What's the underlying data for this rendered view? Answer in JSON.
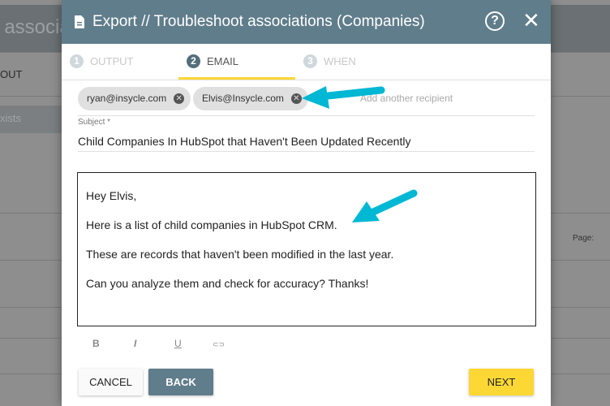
{
  "background": {
    "header_fragment": "t associat",
    "row_fragment": "OUT",
    "filter_fragment": "xists",
    "page_label": "Page:"
  },
  "modal": {
    "title": "Export // Troubleshoot associations (Companies)",
    "steps": [
      {
        "number": "1",
        "label": "OUTPUT",
        "active": false
      },
      {
        "number": "2",
        "label": "EMAIL",
        "active": true
      },
      {
        "number": "3",
        "label": "WHEN",
        "active": false
      }
    ],
    "recipients": [
      "ryan@insycle.com",
      "Elvis@Insycle.com"
    ],
    "recipient_placeholder": "Add another recipient",
    "subject_label": "Subject *",
    "subject_value": "Child Companies In HubSpot that Haven't Been Updated Recently",
    "body": [
      "Hey Elvis,",
      "Here is a list of child companies in HubSpot CRM.",
      "These are records that haven't been modified in the last year.",
      "Can you analyze them and check for accuracy? Thanks!"
    ],
    "toolbar": {
      "bold": "B",
      "italic": "I",
      "underline": "U",
      "link": "⊂⊃"
    },
    "buttons": {
      "cancel": "CANCEL",
      "back": "BACK",
      "next": "NEXT"
    }
  },
  "colors": {
    "header": "#607d8b",
    "accent": "#fdd835",
    "annotation_arrow": "#00b8d4"
  }
}
